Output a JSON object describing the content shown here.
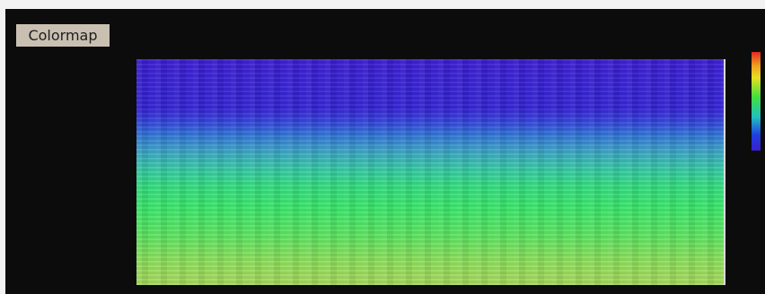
{
  "header": {
    "title": "Colormap"
  }
}
